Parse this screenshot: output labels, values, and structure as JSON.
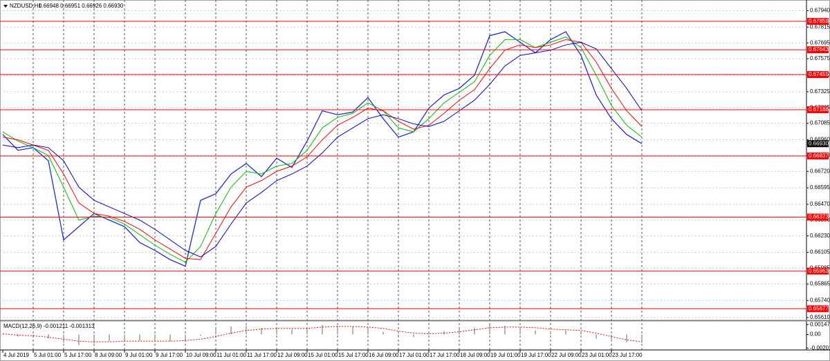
{
  "chart_data": [
    {
      "type": "line",
      "title": "NZDUSD,H1",
      "subtitle": "0.66948 0.66951 0.66926 0.66930",
      "categories": [
        "4 Jul 2019",
        null,
        "5 Jul 01:00",
        null,
        "5 Jul 17:00",
        null,
        "8 Jul 09:00",
        null,
        "9 Jul 01:00",
        null,
        "9 Jul 17:00",
        null,
        "10 Jul 09:00",
        null,
        "11 Jul 01:00",
        null,
        "11 Jul 17:00",
        null,
        "12 Jul 09:00",
        null,
        "15 Jul 01:00",
        null,
        "15 Jul 17:00",
        null,
        "16 Jul 09:00",
        null,
        "17 Jul 01:00",
        null,
        "17 Jul 17:00",
        null,
        "18 Jul 09:00",
        null,
        "19 Jul 01:00",
        null,
        "19 Jul 17:00",
        null,
        "22 Jul 09:00",
        null,
        "23 Jul 01:00",
        null,
        "23 Jul 17:00",
        null,
        null
      ],
      "series": [
        {
          "color": "#1f2bd6",
          "values": [
            0.67,
            0.6688,
            0.669,
            0.668,
            0.662,
            0.663,
            0.664,
            0.6635,
            0.663,
            0.6618,
            0.6612,
            0.6605,
            0.66,
            0.665,
            0.6655,
            0.667,
            0.6678,
            0.6668,
            0.6682,
            0.6675,
            0.6695,
            0.6718,
            0.6715,
            0.6717,
            0.6728,
            0.6712,
            0.6698,
            0.6702,
            0.672,
            0.673,
            0.6735,
            0.6745,
            0.6775,
            0.6778,
            0.677,
            0.6762,
            0.6772,
            0.6778,
            0.676,
            0.673,
            0.6712,
            0.67,
            0.6693
          ]
        },
        {
          "color": "#00c000",
          "values": [
            0.6702,
            0.6695,
            0.669,
            0.6684,
            0.666,
            0.6635,
            0.6638,
            0.6637,
            0.6632,
            0.6624,
            0.6616,
            0.6609,
            0.6603,
            0.6615,
            0.664,
            0.666,
            0.6672,
            0.667,
            0.6676,
            0.6678,
            0.6688,
            0.6705,
            0.6713,
            0.6716,
            0.6724,
            0.6718,
            0.6705,
            0.6702,
            0.6712,
            0.6724,
            0.6732,
            0.674,
            0.676,
            0.6772,
            0.6772,
            0.6766,
            0.677,
            0.6774,
            0.6766,
            0.6745,
            0.6722,
            0.6707,
            0.6698
          ]
        },
        {
          "color": "#ff0000",
          "values": [
            0.6698,
            0.6696,
            0.6692,
            0.6688,
            0.667,
            0.6648,
            0.664,
            0.6638,
            0.6634,
            0.6628,
            0.662,
            0.6613,
            0.6606,
            0.6605,
            0.6625,
            0.6645,
            0.666,
            0.6665,
            0.6672,
            0.6676,
            0.6683,
            0.6696,
            0.6707,
            0.6713,
            0.672,
            0.6718,
            0.671,
            0.6704,
            0.6707,
            0.6716,
            0.6726,
            0.6734,
            0.675,
            0.6764,
            0.6768,
            0.6766,
            0.6768,
            0.6772,
            0.677,
            0.6755,
            0.6735,
            0.6718,
            0.6706
          ]
        },
        {
          "color": "#0000c8",
          "values": [
            0.6692,
            0.669,
            0.6692,
            0.669,
            0.668,
            0.666,
            0.665,
            0.6645,
            0.664,
            0.6635,
            0.6628,
            0.662,
            0.6612,
            0.6607,
            0.6615,
            0.6632,
            0.6648,
            0.6656,
            0.6665,
            0.667,
            0.6676,
            0.6686,
            0.6698,
            0.6705,
            0.6712,
            0.6715,
            0.6712,
            0.6708,
            0.6706,
            0.671,
            0.6718,
            0.6726,
            0.6738,
            0.6752,
            0.676,
            0.6762,
            0.6764,
            0.6768,
            0.677,
            0.6765,
            0.675,
            0.6735,
            0.6718
          ]
        }
      ],
      "levels": {
        "color": "#ff0000",
        "values": [
          0.67859,
          0.67643,
          0.67455,
          0.67188,
          0.66837,
          0.66373,
          0.65963,
          0.65677
        ]
      },
      "last_price": {
        "value": 0.6693,
        "label": "0.66930"
      },
      "ylim": [
        0.656,
        0.68
      ],
      "yticks": [
        {
          "value": 0.6794,
          "label": "0.67940"
        },
        0.67815,
        0.67695,
        0.67575,
        {
          "value": 0.6745,
          "label": "0.67450"
        },
        0.67325,
        0.67205,
        0.67085,
        {
          "value": 0.6696,
          "label": "0.66960"
        },
        {
          "value": 0.6684,
          "label": "0.66840"
        },
        {
          "value": 0.6672,
          "label": "0.66720"
        },
        0.66595,
        {
          "value": 0.6647,
          "label": "0.66470"
        },
        {
          "value": 0.6635,
          "label": "0.66350"
        },
        {
          "value": 0.6623,
          "label": "0.66230"
        },
        0.66105,
        0.65985,
        0.65865,
        {
          "value": 0.6574,
          "label": "0.65740"
        },
        {
          "value": 0.6561,
          "label": "0.65610"
        }
      ],
      "grid": true
    },
    {
      "type": "bar",
      "title": "MACD(12,26,9) -0.001211 -0.001313",
      "color": "#b4b4b4",
      "values": [
        0.0,
        -0.0003,
        -0.0004,
        -0.0006,
        -0.0012,
        -0.0016,
        -0.0013,
        -0.001,
        -0.0008,
        -0.0009,
        -0.001,
        -0.001,
        -0.0009,
        -0.0002,
        0.0008,
        0.0012,
        0.0013,
        0.001,
        0.001,
        0.0008,
        0.001,
        0.0014,
        0.0013,
        0.0012,
        0.001,
        0.0004,
        -0.0002,
        -0.0004,
        0.0,
        0.0005,
        0.0008,
        0.001,
        0.0014,
        0.0013,
        0.001,
        0.0006,
        0.0005,
        0.0006,
        0.0002,
        -0.0006,
        -0.001,
        -0.0012,
        -0.0012
      ],
      "signal": {
        "color": "#ff0000",
        "values": [
          0.0001,
          -0.0001,
          -0.0002,
          -0.0004,
          -0.0007,
          -0.001,
          -0.0011,
          -0.0011,
          -0.001,
          -0.001,
          -0.001,
          -0.001,
          -0.0009,
          -0.0007,
          -0.0003,
          0.0002,
          0.0006,
          0.0008,
          0.0009,
          0.0009,
          0.0009,
          0.0011,
          0.0012,
          0.0012,
          0.0011,
          0.0009,
          0.0005,
          0.0002,
          0.0001,
          0.0002,
          0.0004,
          0.0007,
          0.001,
          0.0011,
          0.0011,
          0.001,
          0.0008,
          0.0007,
          0.0006,
          0.0002,
          -0.0003,
          -0.0008,
          -0.0011
        ]
      },
      "ylim": [
        -0.0022,
        0.0017
      ],
      "yticks": [
        0.001474,
        {
          "value": 0,
          "label": "0.00"
        },
        -0.002018
      ]
    }
  ]
}
